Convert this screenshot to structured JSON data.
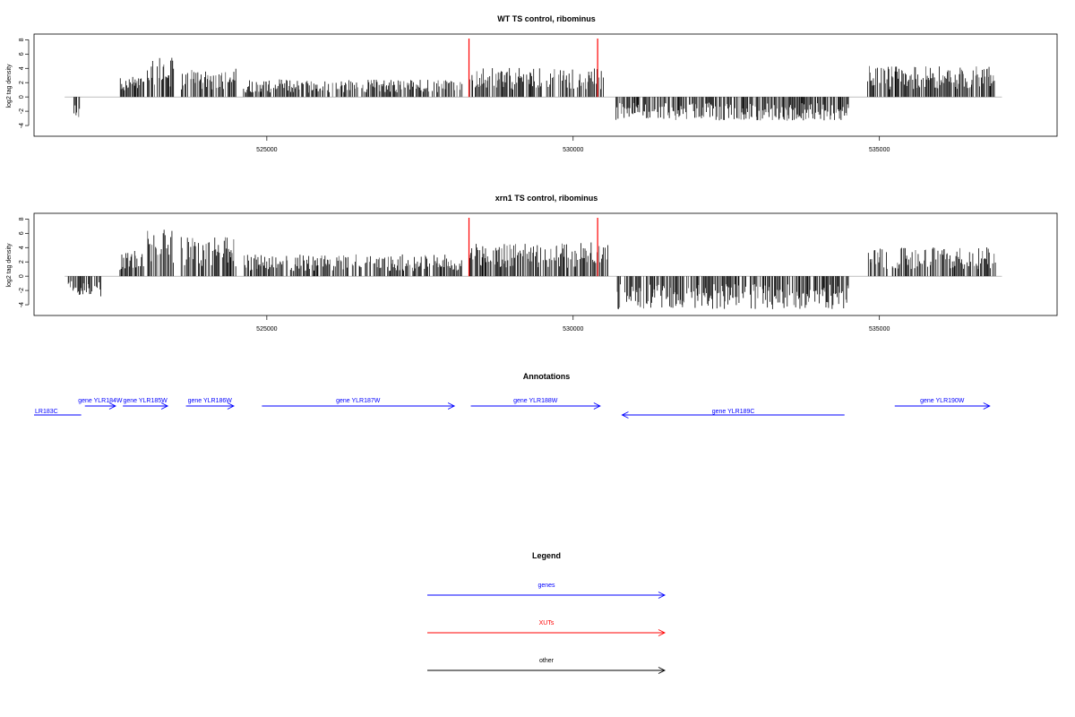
{
  "chart_data": [
    {
      "type": "bar",
      "title": "WT TS control, ribominus",
      "ylabel": "log2 tag density",
      "xlabel": "",
      "xlim": [
        521200,
        537900
      ],
      "ylim": [
        -5.5,
        8.8
      ],
      "yticks": [
        -4,
        -2,
        0,
        2,
        4,
        6,
        8
      ],
      "xticks": [
        525000,
        530000,
        535000
      ],
      "xtick_labels": [
        "525000",
        "530000",
        "535000"
      ],
      "grid": false,
      "xut_markers": [
        528300,
        530400
      ],
      "colors": {
        "bars": "#000000",
        "marker": "#ff0000",
        "baseline": "#999999"
      },
      "coverage_x_range": [
        521700,
        537000
      ],
      "segments": [
        {
          "start": 521850,
          "end": 521950,
          "level": -2.2
        },
        {
          "start": 522600,
          "end": 523000,
          "level": 2.0
        },
        {
          "start": 523050,
          "end": 523500,
          "level": 3.8
        },
        {
          "start": 523600,
          "end": 524500,
          "level": 2.8
        },
        {
          "start": 524600,
          "end": 528200,
          "level": 1.7
        },
        {
          "start": 528300,
          "end": 530500,
          "level": 2.8
        },
        {
          "start": 530700,
          "end": 534500,
          "level": -2.3
        },
        {
          "start": 534800,
          "end": 536900,
          "level": 3.0
        }
      ]
    },
    {
      "type": "bar",
      "title": "xrn1 TS control, ribominus",
      "ylabel": "log2 tag density",
      "xlabel": "",
      "xlim": [
        521200,
        537900
      ],
      "ylim": [
        -5.5,
        8.8
      ],
      "yticks": [
        -4,
        -2,
        0,
        2,
        4,
        6,
        8
      ],
      "xticks": [
        525000,
        530000,
        535000
      ],
      "xtick_labels": [
        "525000",
        "530000",
        "535000"
      ],
      "grid": false,
      "xut_markers": [
        528300,
        530400
      ],
      "colors": {
        "bars": "#000000",
        "marker": "#ff0000",
        "baseline": "#999999"
      },
      "coverage_x_range": [
        521700,
        537000
      ],
      "segments": [
        {
          "start": 521750,
          "end": 522300,
          "level": -2.0
        },
        {
          "start": 522600,
          "end": 523000,
          "level": 2.5
        },
        {
          "start": 523050,
          "end": 523500,
          "level": 4.6
        },
        {
          "start": 523600,
          "end": 524500,
          "level": 3.8
        },
        {
          "start": 524600,
          "end": 528200,
          "level": 2.1
        },
        {
          "start": 528300,
          "end": 530600,
          "level": 3.3
        },
        {
          "start": 530700,
          "end": 534500,
          "level": -3.2
        },
        {
          "start": 534800,
          "end": 536900,
          "level": 2.8
        }
      ]
    }
  ],
  "annotations": {
    "title": "Annotations",
    "genes": [
      {
        "label": "LR183C",
        "start": 521200,
        "end": 521970,
        "strand": "-",
        "color": "#0000ff"
      },
      {
        "label": "gene YLR184W",
        "start": 522030,
        "end": 522530,
        "strand": "+",
        "color": "#0000ff"
      },
      {
        "label": "gene YLR185W",
        "start": 522650,
        "end": 523380,
        "strand": "+",
        "color": "#0000ff"
      },
      {
        "label": "gene YLR186W",
        "start": 523680,
        "end": 524460,
        "strand": "+",
        "color": "#0000ff"
      },
      {
        "label": "gene YLR187W",
        "start": 524920,
        "end": 528060,
        "strand": "+",
        "color": "#0000ff"
      },
      {
        "label": "gene YLR188W",
        "start": 528330,
        "end": 530440,
        "strand": "+",
        "color": "#0000ff"
      },
      {
        "label": "gene YLR189C",
        "start": 530800,
        "end": 534430,
        "strand": "-",
        "color": "#0000ff"
      },
      {
        "label": "gene YLR190W",
        "start": 535250,
        "end": 536800,
        "strand": "+",
        "color": "#0000ff"
      }
    ]
  },
  "legend": {
    "title": "Legend",
    "items": [
      {
        "label": "genes",
        "color": "#0000ff"
      },
      {
        "label": "XUTs",
        "color": "#ff0000"
      },
      {
        "label": "other",
        "color": "#000000"
      }
    ]
  }
}
